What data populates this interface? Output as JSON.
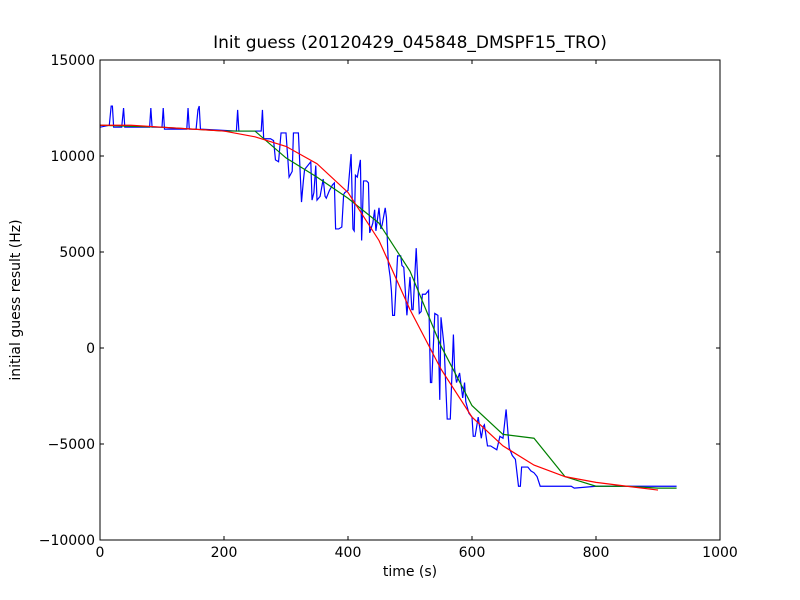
{
  "chart_data": {
    "type": "line",
    "title": "Init guess (20120429_045848_DMSPF15_TRO)",
    "xlabel": "time (s)",
    "ylabel": "initial guess result (Hz)",
    "xlim": [
      0,
      1000
    ],
    "ylim": [
      -10000,
      15000
    ],
    "x_ticks": [
      0,
      200,
      400,
      600,
      800,
      1000
    ],
    "y_ticks": [
      -10000,
      -5000,
      0,
      5000,
      10000,
      15000
    ],
    "x_tick_labels": [
      "0",
      "200",
      "400",
      "600",
      "800",
      "1000"
    ],
    "y_tick_labels": [
      "−10000",
      "−5000",
      "0",
      "5000",
      "10000",
      "15000"
    ],
    "grid": false,
    "legend": "none",
    "series": [
      {
        "color": "#0000ff",
        "x": [
          0,
          15,
          18,
          20,
          22,
          35,
          38,
          40,
          42,
          80,
          82,
          84,
          100,
          102,
          104,
          140,
          142,
          144,
          155,
          158,
          160,
          162,
          220,
          222,
          224,
          245,
          260,
          262,
          264,
          275,
          280,
          283,
          288,
          292,
          300,
          305,
          310,
          312,
          315,
          320,
          325,
          328,
          330,
          335,
          340,
          342,
          345,
          348,
          350,
          355,
          360,
          363,
          365,
          370,
          375,
          378,
          380,
          385,
          390,
          393,
          395,
          400,
          405,
          408,
          410,
          412,
          415,
          420,
          422,
          425,
          430,
          433,
          435,
          440,
          443,
          445,
          450,
          453,
          455,
          460,
          462,
          465,
          468,
          470,
          472,
          475,
          480,
          485,
          487,
          490,
          495,
          500,
          503,
          505,
          510,
          515,
          518,
          520,
          525,
          530,
          533,
          535,
          540,
          545,
          548,
          550,
          555,
          560,
          562,
          565,
          570,
          572,
          575,
          580,
          585,
          588,
          590,
          595,
          600,
          602,
          605,
          610,
          615,
          618,
          620,
          625,
          630,
          635,
          640,
          645,
          650,
          655,
          660,
          665,
          670,
          675,
          678,
          680,
          690,
          695,
          700,
          705,
          710,
          715,
          720,
          730,
          760,
          765,
          800,
          900,
          930
        ],
        "y": [
          11500,
          11600,
          12600,
          12600,
          11500,
          11500,
          12500,
          11500,
          11500,
          11500,
          12500,
          11500,
          11500,
          12500,
          11400,
          11400,
          12500,
          11400,
          11400,
          12400,
          12600,
          11400,
          11300,
          12400,
          11300,
          11300,
          11300,
          12400,
          10900,
          10900,
          10800,
          9800,
          9700,
          11200,
          11200,
          8900,
          9200,
          11200,
          11200,
          11200,
          7600,
          8700,
          9300,
          9500,
          9700,
          7700,
          8100,
          9500,
          7700,
          7900,
          8800,
          7900,
          7800,
          8200,
          8500,
          8600,
          6200,
          6200,
          6300,
          8000,
          8100,
          8200,
          10100,
          6200,
          6100,
          9000,
          8900,
          9800,
          5600,
          8700,
          8700,
          8600,
          6000,
          6500,
          7200,
          6100,
          7300,
          6200,
          6400,
          7300,
          6800,
          4400,
          3700,
          3000,
          1700,
          1700,
          4800,
          4800,
          4300,
          4200,
          1700,
          3700,
          2000,
          2000,
          5200,
          1800,
          1900,
          2800,
          2800,
          3000,
          -1800,
          -1800,
          1800,
          1700,
          -2700,
          1600,
          100,
          -3700,
          -3700,
          -3700,
          700,
          -1100,
          -1800,
          -1300,
          -2600,
          -1800,
          -2800,
          -3400,
          -3600,
          -4600,
          -4600,
          -3600,
          -4700,
          -4100,
          -4000,
          -5100,
          -5100,
          -5200,
          -5300,
          -4600,
          -4700,
          -3200,
          -5200,
          -5600,
          -5800,
          -7200,
          -7200,
          -6200,
          -6200,
          -6400,
          -6500,
          -6700,
          -7200,
          -7200,
          -7200,
          -7200,
          -7200,
          -7300,
          -7200,
          -7200,
          -7200
        ],
        "values_are_estimates": true
      },
      {
        "color": "#008000",
        "x": [
          0,
          100,
          200,
          250,
          300,
          350,
          400,
          450,
          500,
          550,
          600,
          650,
          700,
          750,
          800,
          850,
          900,
          930
        ],
        "y": [
          11600,
          11500,
          11300,
          11300,
          9900,
          8900,
          7800,
          6500,
          4000,
          100,
          -3000,
          -4500,
          -4700,
          -6700,
          -7200,
          -7200,
          -7300,
          -7300
        ]
      },
      {
        "color": "#ff0000",
        "x": [
          0,
          50,
          100,
          150,
          200,
          250,
          300,
          350,
          400,
          450,
          500,
          550,
          600,
          650,
          700,
          750,
          800,
          850,
          900
        ],
        "y": [
          11600,
          11600,
          11500,
          11400,
          11300,
          11000,
          10500,
          9600,
          8100,
          5600,
          2000,
          -1100,
          -3600,
          -5100,
          -6100,
          -6700,
          -7000,
          -7200,
          -7400
        ]
      }
    ]
  }
}
